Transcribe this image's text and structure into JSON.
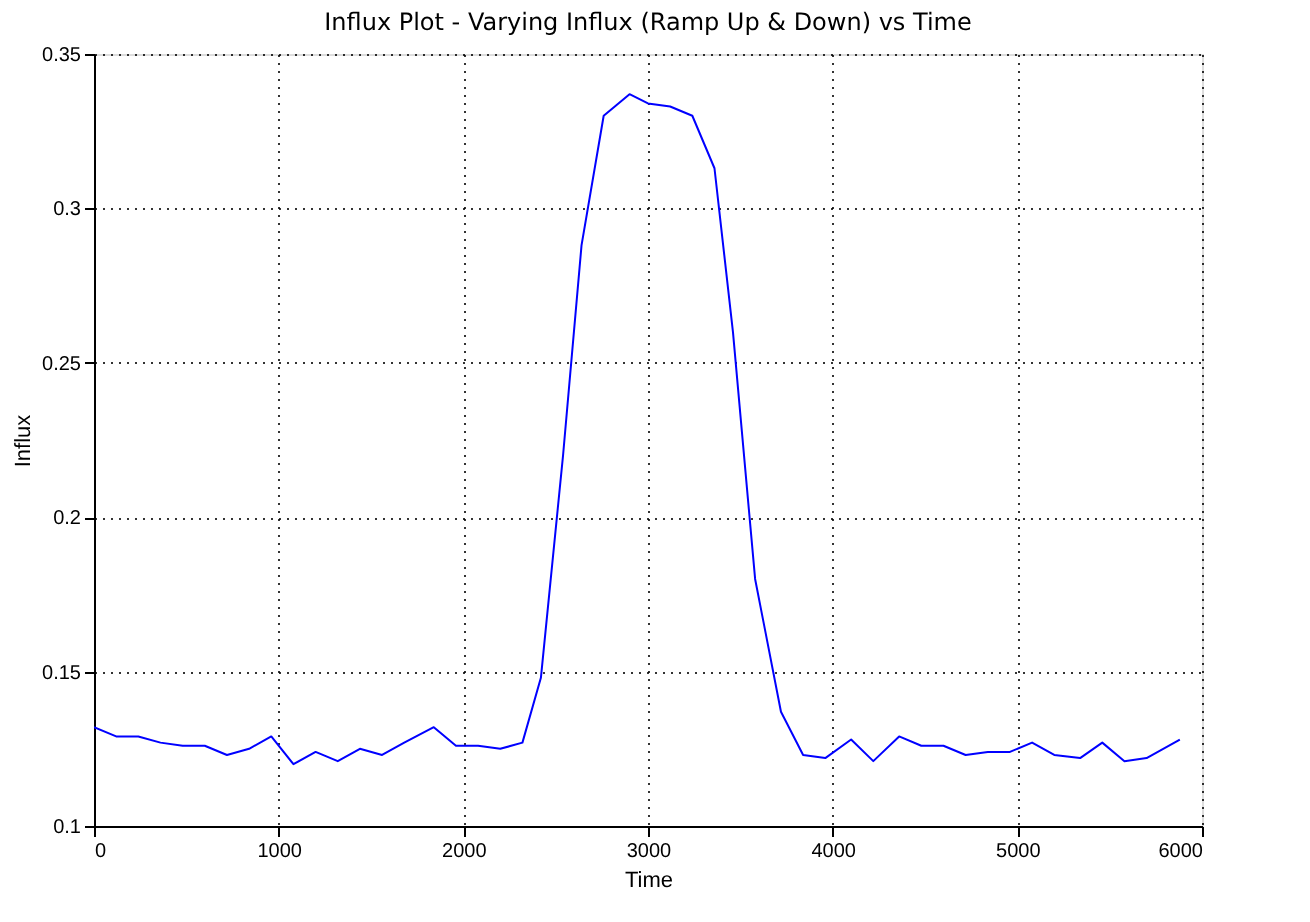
{
  "chart_data": {
    "type": "line",
    "title": "Influx Plot - Varying Influx (Ramp Up & Down) vs Time",
    "xlabel": "Time",
    "ylabel": "Influx",
    "x": [
      0,
      120,
      240,
      360,
      480,
      600,
      720,
      840,
      960,
      1080,
      1200,
      1320,
      1440,
      1560,
      1680,
      1840,
      1960,
      2080,
      2200,
      2320,
      2420,
      2540,
      2640,
      2760,
      2900,
      3000,
      3120,
      3240,
      3360,
      3460,
      3580,
      3720,
      3840,
      3960,
      4100,
      4220,
      4360,
      4480,
      4600,
      4720,
      4840,
      4960,
      5080,
      5200,
      5340,
      5460,
      5580,
      5700,
      5880
    ],
    "series": [
      {
        "color": "#0000ff",
        "values": [
          0.132,
          0.129,
          0.129,
          0.127,
          0.126,
          0.126,
          0.123,
          0.125,
          0.129,
          0.12,
          0.124,
          0.121,
          0.125,
          0.123,
          0.127,
          0.132,
          0.126,
          0.126,
          0.125,
          0.127,
          0.148,
          0.22,
          0.288,
          0.33,
          0.337,
          0.334,
          0.333,
          0.33,
          0.313,
          0.26,
          0.18,
          0.137,
          0.123,
          0.122,
          0.128,
          0.121,
          0.129,
          0.126,
          0.126,
          0.123,
          0.124,
          0.124,
          0.127,
          0.123,
          0.122,
          0.127,
          0.121,
          0.122,
          0.128
        ]
      }
    ],
    "xlim": [
      0,
      6000
    ],
    "xticks": [
      0,
      1000,
      2000,
      3000,
      4000,
      5000,
      6000
    ],
    "ylim": [
      0.1,
      0.35
    ],
    "yticks": [
      0.1,
      0.15,
      0.2,
      0.25,
      0.3,
      0.35
    ],
    "grid": true,
    "line_style": "solid",
    "marker": "none"
  }
}
